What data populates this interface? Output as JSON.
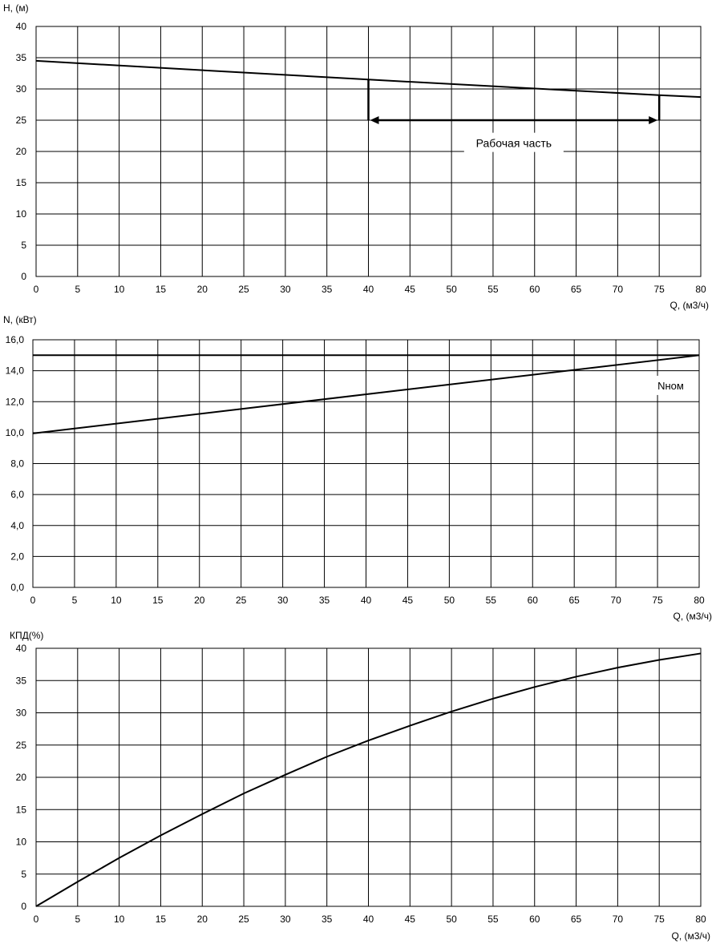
{
  "chart_data": [
    {
      "type": "line",
      "ylabel": "H, (м)",
      "xlabel": "Q, (м3/ч)",
      "xlim": [
        0,
        80
      ],
      "ylim": [
        0,
        40
      ],
      "xticks": [
        0,
        5,
        10,
        15,
        20,
        25,
        30,
        35,
        40,
        45,
        50,
        55,
        60,
        65,
        70,
        75,
        80
      ],
      "xtick_labels": [
        "0",
        "5",
        "10",
        "15",
        "20",
        "25",
        "30",
        "35",
        "40",
        "45",
        "50",
        "55",
        "60",
        "65",
        "70",
        "75",
        "80"
      ],
      "yticks": [
        0,
        5,
        10,
        15,
        20,
        25,
        30,
        35,
        40
      ],
      "ytick_labels": [
        "0",
        "5",
        "10",
        "15",
        "20",
        "25",
        "30",
        "35",
        "40"
      ],
      "grid": true,
      "series": [
        {
          "x": [
            0,
            40,
            75,
            80
          ],
          "y": [
            34.5,
            31.5,
            29.0,
            28.7
          ]
        }
      ],
      "annotation": {
        "label": "Рабочая часть",
        "x_start": 40,
        "x_end": 75,
        "arrow_y": 25,
        "label_y": 21.2
      }
    },
    {
      "type": "line",
      "ylabel": "N, (кВт)",
      "xlabel": "Q, (м3/ч)",
      "xlim": [
        0,
        80
      ],
      "ylim": [
        0,
        16
      ],
      "xticks": [
        0,
        5,
        10,
        15,
        20,
        25,
        30,
        35,
        40,
        45,
        50,
        55,
        60,
        65,
        70,
        75,
        80
      ],
      "xtick_labels": [
        "0",
        "5",
        "10",
        "15",
        "20",
        "25",
        "30",
        "35",
        "40",
        "45",
        "50",
        "55",
        "60",
        "65",
        "70",
        "75",
        "80"
      ],
      "yticks": [
        0,
        2,
        4,
        6,
        8,
        10,
        12,
        14,
        16
      ],
      "ytick_labels": [
        "0,0",
        "2,0",
        "4,0",
        "6,0",
        "8,0",
        "10,0",
        "12,0",
        "14,0",
        "16,0"
      ],
      "grid": true,
      "series": [
        {
          "x": [
            0,
            80
          ],
          "y": [
            9.95,
            15.0
          ]
        },
        {
          "x": [
            0,
            80
          ],
          "y": [
            15.0,
            15.0
          ]
        }
      ],
      "annotation": {
        "label": "Nном",
        "x": 75,
        "label_y": 13.0
      }
    },
    {
      "type": "line",
      "ylabel": "КПД(%)",
      "xlabel": "Q, (м3/ч)",
      "xlim": [
        0,
        80
      ],
      "ylim": [
        0,
        40
      ],
      "xticks": [
        0,
        5,
        10,
        15,
        20,
        25,
        30,
        35,
        40,
        45,
        50,
        55,
        60,
        65,
        70,
        75,
        80
      ],
      "xtick_labels": [
        "0",
        "5",
        "10",
        "15",
        "20",
        "25",
        "30",
        "35",
        "40",
        "45",
        "50",
        "55",
        "60",
        "65",
        "70",
        "75",
        "80"
      ],
      "yticks": [
        0,
        5,
        10,
        15,
        20,
        25,
        30,
        35,
        40
      ],
      "ytick_labels": [
        "0",
        "5",
        "10",
        "15",
        "20",
        "25",
        "30",
        "35",
        "40"
      ],
      "grid": true,
      "series": [
        {
          "x": [
            0,
            5,
            10,
            15,
            20,
            25,
            30,
            35,
            40,
            45,
            50,
            55,
            60,
            65,
            70,
            75,
            80
          ],
          "y": [
            0,
            3.8,
            7.5,
            11.0,
            14.3,
            17.5,
            20.4,
            23.2,
            25.7,
            28.0,
            30.2,
            32.2,
            34.0,
            35.6,
            37.0,
            38.2,
            39.2
          ]
        }
      ]
    }
  ]
}
